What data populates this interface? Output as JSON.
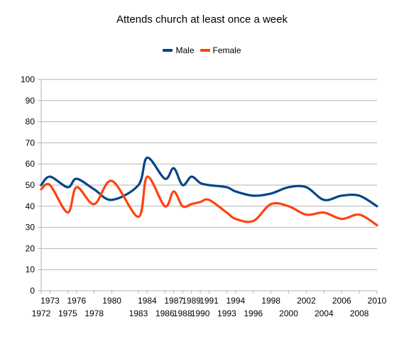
{
  "chart_data": {
    "type": "line",
    "title": "Attends church at least once a week",
    "xlabel": "",
    "ylabel": "",
    "ylim": [
      0,
      100
    ],
    "yticks": [
      0,
      10,
      20,
      30,
      40,
      50,
      60,
      70,
      80,
      90,
      100
    ],
    "x_tick_labels_upper": [
      "1973",
      "1976",
      "1980",
      "1984",
      "1987",
      "1989",
      "1991",
      "1994",
      "1998",
      "2002",
      "2006",
      "2010"
    ],
    "x_tick_labels_lower": [
      "1972",
      "1975",
      "1978",
      "1983",
      "1986",
      "1988",
      "1990",
      "1993",
      "1996",
      "2000",
      "2004",
      "2008"
    ],
    "categories": [
      "1972",
      "1973",
      "1975",
      "1976",
      "1978",
      "1980",
      "1983",
      "1984",
      "1986",
      "1987",
      "1988",
      "1989",
      "1990",
      "1991",
      "1993",
      "1994",
      "1996",
      "1998",
      "2000",
      "2002",
      "2004",
      "2006",
      "2008",
      "2010"
    ],
    "grid": true,
    "legend_position": "top",
    "series": [
      {
        "name": "Male",
        "color": "#004586",
        "values": [
          50,
          54,
          49,
          53,
          48,
          43,
          50,
          63,
          53,
          58,
          50,
          54,
          51,
          50,
          49,
          47,
          45,
          46,
          49,
          49,
          43,
          45,
          45,
          40
        ]
      },
      {
        "name": "Female",
        "color": "#ff420e",
        "values": [
          48,
          50,
          37,
          49,
          41,
          52,
          35,
          54,
          40,
          47,
          40,
          41,
          42,
          43,
          37,
          34,
          33,
          41,
          40,
          36,
          37,
          34,
          36,
          31
        ]
      }
    ]
  }
}
